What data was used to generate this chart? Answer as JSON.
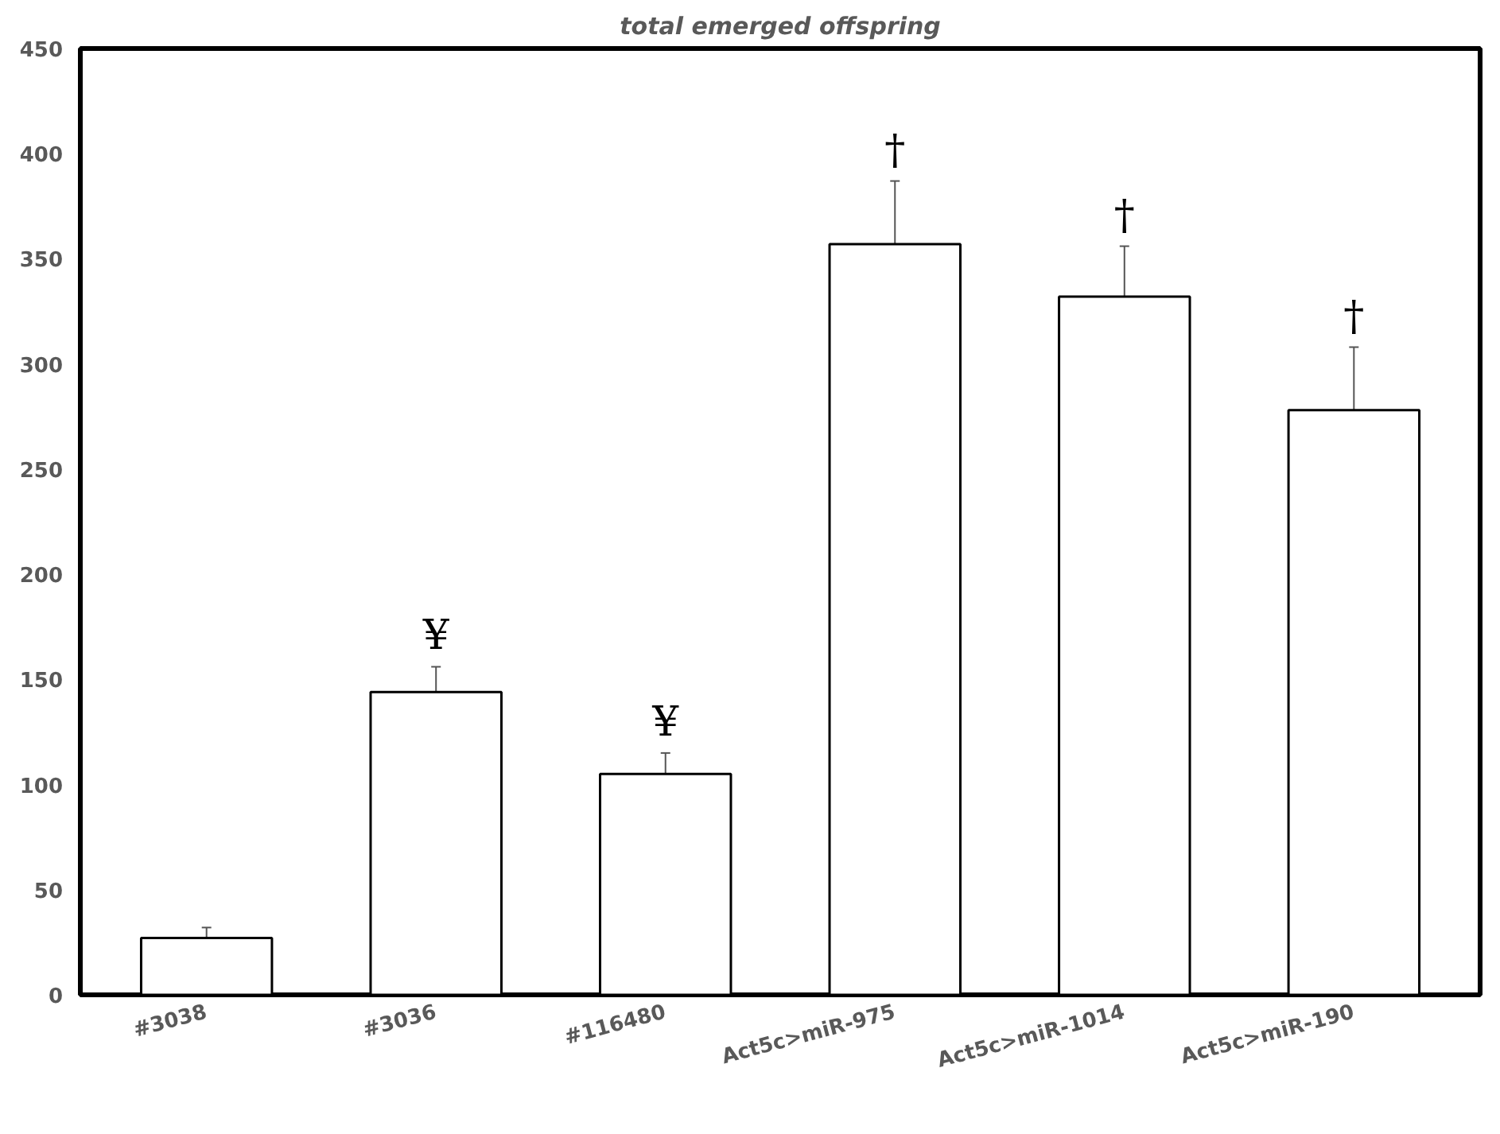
{
  "chart_data": {
    "type": "bar",
    "title": "total emerged offspring",
    "categories": [
      "#3038",
      "#3036",
      "#116480",
      "Act5c>miR-975",
      "Act5c>miR-1014",
      "Act5c>miR-190"
    ],
    "values": [
      27,
      144,
      105,
      357,
      332,
      278
    ],
    "errors": [
      5,
      12,
      10,
      30,
      24,
      30
    ],
    "color": "#ffffff",
    "ylim": [
      0,
      450
    ],
    "yticks": [
      0,
      50,
      100,
      150,
      200,
      250,
      300,
      350,
      400,
      450
    ],
    "grid": false,
    "annotations": [
      {
        "text": "¥",
        "x": "#3036",
        "y": 156
      },
      {
        "text": "¥",
        "x": "#116480",
        "y": 115
      },
      {
        "text": "†",
        "x": "Act5c>miR-975",
        "y": 387
      },
      {
        "text": "†",
        "x": "Act5c>miR-1014",
        "y": 356
      },
      {
        "text": "†",
        "x": "Act5c>miR-190",
        "y": 308
      }
    ]
  }
}
